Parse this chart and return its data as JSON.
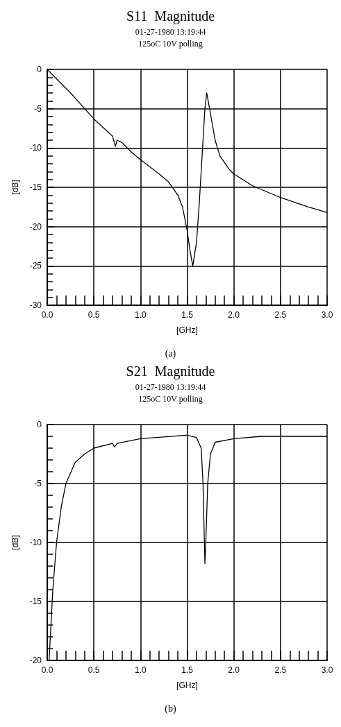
{
  "chart_data": [
    {
      "type": "line",
      "title": "S11  Magnitude",
      "subtitle": "01-27-1980 13:19:44\n125oC 10V polling",
      "xlabel": "[GHz]",
      "ylabel": "[dB]",
      "annotations": [
        "(a)"
      ],
      "grid": true,
      "marker": "none",
      "line_style": "solid",
      "xlim": [
        0,
        3
      ],
      "xticks": [
        {
          "value": 0,
          "label": "0.0"
        },
        {
          "value": 0.5,
          "label": "0.5"
        },
        {
          "value": 1,
          "label": "1.0"
        },
        {
          "value": 1.5,
          "label": "1.5"
        },
        {
          "value": 2,
          "label": "2.0"
        },
        {
          "value": 2.5,
          "label": "2.5"
        },
        {
          "value": 3,
          "label": "3.0"
        }
      ],
      "ylim": [
        -30,
        0
      ],
      "yticks": [
        -30,
        -25,
        -20,
        -15,
        -10,
        -5,
        0
      ],
      "series": [
        {
          "color": "#000000",
          "x": [
            0,
            0.25,
            0.5,
            0.7,
            0.73,
            0.75,
            0.8,
            0.9,
            1.0,
            1.2,
            1.3,
            1.4,
            1.45,
            1.5,
            1.53,
            1.56,
            1.6,
            1.63,
            1.66,
            1.69,
            1.71,
            1.74,
            1.8,
            1.85,
            1.95,
            2.0,
            2.2,
            2.5,
            2.8,
            3.0
          ],
          "values": [
            0,
            -3,
            -6.3,
            -8.5,
            -9.8,
            -9,
            -9.3,
            -10.5,
            -11.5,
            -13.3,
            -14.3,
            -16,
            -17.5,
            -20.5,
            -23,
            -25,
            -22,
            -17,
            -11,
            -5,
            -3,
            -5,
            -9,
            -11,
            -12.7,
            -13.3,
            -14.8,
            -16.3,
            -17.5,
            -18.2
          ]
        }
      ]
    },
    {
      "type": "line",
      "title": "S21  Magnitude",
      "subtitle": "01-27-1980 13:19:44\n125oC 10V polling",
      "xlabel": "[GHz]",
      "ylabel": "[dB]",
      "annotations": [
        "(b)"
      ],
      "grid": true,
      "marker": "none",
      "line_style": "solid",
      "xlim": [
        0,
        3
      ],
      "xticks": [
        {
          "value": 0,
          "label": "0.0"
        },
        {
          "value": 0.5,
          "label": "0.5"
        },
        {
          "value": 1,
          "label": "1.0"
        },
        {
          "value": 1.5,
          "label": "1.5"
        },
        {
          "value": 2,
          "label": "2.0"
        },
        {
          "value": 2.5,
          "label": "2.5"
        },
        {
          "value": 3,
          "label": "3.0"
        }
      ],
      "ylim": [
        -20,
        0
      ],
      "yticks": [
        -20,
        -15,
        -10,
        -5,
        0
      ],
      "series": [
        {
          "color": "#000000",
          "x": [
            0.02,
            0.04,
            0.06,
            0.1,
            0.15,
            0.2,
            0.3,
            0.4,
            0.5,
            0.7,
            0.72,
            0.75,
            1.0,
            1.5,
            1.6,
            1.65,
            1.67,
            1.69,
            1.7,
            1.72,
            1.75,
            1.8,
            2.0,
            2.3,
            3.0
          ],
          "values": [
            -20,
            -17,
            -14,
            -10,
            -7,
            -5,
            -3.2,
            -2.5,
            -2,
            -1.6,
            -1.9,
            -1.6,
            -1.2,
            -0.9,
            -1.1,
            -2,
            -5,
            -11.8,
            -10,
            -5,
            -2.5,
            -1.5,
            -1.2,
            -1.0,
            -1.0
          ]
        }
      ]
    }
  ]
}
